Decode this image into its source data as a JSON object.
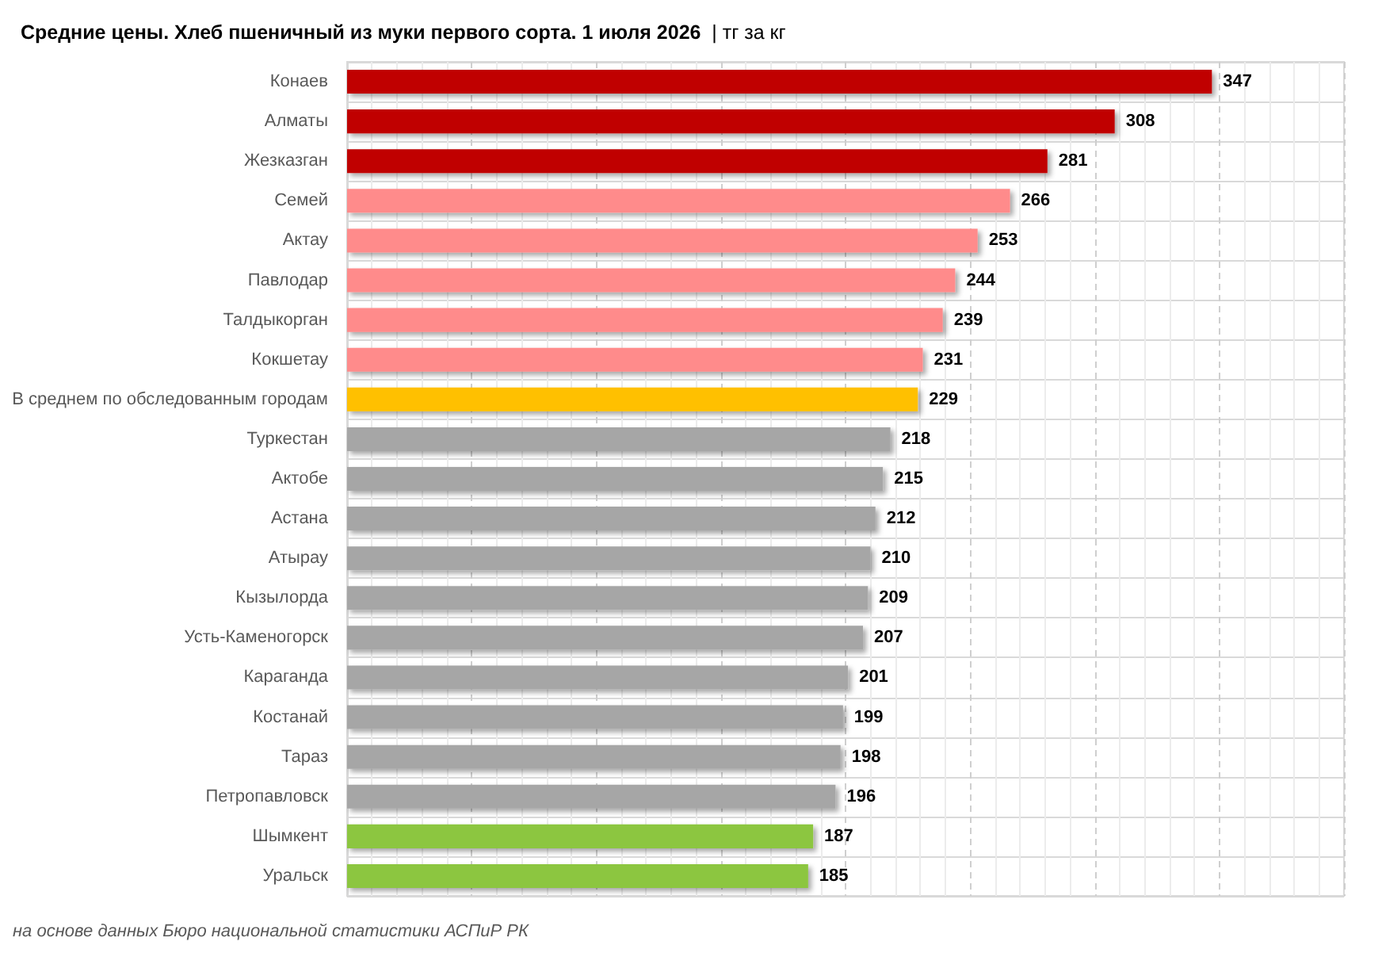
{
  "chart_data": {
    "type": "bar",
    "orientation": "horizontal",
    "title": "Средние цены. Хлеб пшеничный из муки первого сорта. 1 июля 2026",
    "subtitle": "| тг за кг",
    "categories": [
      "Конаев",
      "Алматы",
      "Жезказган",
      "Семей",
      "Актау",
      "Павлодар",
      "Талдыкорган",
      "Кокшетау",
      "В среднем по обследованным городам",
      "Туркестан",
      "Актобе",
      "Астана",
      "Атырау",
      "Кызылорда",
      "Усть-Каменогорск",
      "Караганда",
      "Костанай",
      "Тараз",
      "Петропавловск",
      "Шымкент",
      "Уральск"
    ],
    "values": [
      347,
      308,
      281,
      266,
      253,
      244,
      239,
      231,
      229,
      218,
      215,
      212,
      210,
      209,
      207,
      201,
      199,
      198,
      196,
      187,
      185
    ],
    "colors": [
      "#c00000",
      "#c00000",
      "#c00000",
      "#ff8b8b",
      "#ff8b8b",
      "#ff8b8b",
      "#ff8b8b",
      "#ff8b8b",
      "#ffc000",
      "#a6a6a6",
      "#a6a6a6",
      "#a6a6a6",
      "#a6a6a6",
      "#a6a6a6",
      "#a6a6a6",
      "#a6a6a6",
      "#a6a6a6",
      "#a6a6a6",
      "#a6a6a6",
      "#8cc63f",
      "#8cc63f"
    ],
    "xlim": [
      0,
      400
    ],
    "xticks": [
      {
        "value": 0,
        "label": null
      },
      {
        "value": 50,
        "label": null
      },
      {
        "value": 100,
        "label": null
      },
      {
        "value": 150,
        "label": null
      },
      {
        "value": 200,
        "label": null
      },
      {
        "value": 250,
        "label": null
      },
      {
        "value": 300,
        "label": null
      },
      {
        "value": 350,
        "label": null
      },
      {
        "value": 400,
        "label": null
      }
    ],
    "tick_labels": "y",
    "grid": true,
    "data_labels": true,
    "annotations": [
      "на основе данных Бюро национальной статистики АСПиР РК"
    ]
  }
}
